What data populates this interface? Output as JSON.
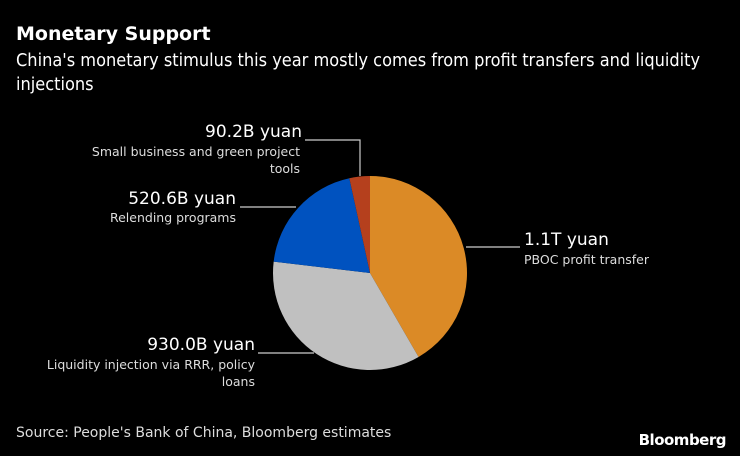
{
  "chart_data": {
    "type": "pie",
    "title": "Monetary Support",
    "subtitle": "China's monetary stimulus this year mostly comes from profit transfers and liquidity injections",
    "unit": "billion yuan",
    "slices": [
      {
        "label": "PBOC profit transfer",
        "value": 1100,
        "value_label": "1.1T yuan",
        "color": "#DB8A26"
      },
      {
        "label": "Liquidity injection via RRR, policy loans",
        "value": 930.0,
        "value_label": "930.0B yuan",
        "color": "#C0C0C0"
      },
      {
        "label": "Relending programs",
        "value": 520.6,
        "value_label": "520.6B yuan",
        "color": "#0052BF"
      },
      {
        "label": "Small business and green project tools",
        "value": 90.2,
        "value_label": "90.2B yuan",
        "color": "#B5401D"
      }
    ],
    "start_angle": "12 o'clock, clockwise"
  },
  "source": "Source: People's Bank of China, Bloomberg estimates",
  "logo": "Bloomberg"
}
